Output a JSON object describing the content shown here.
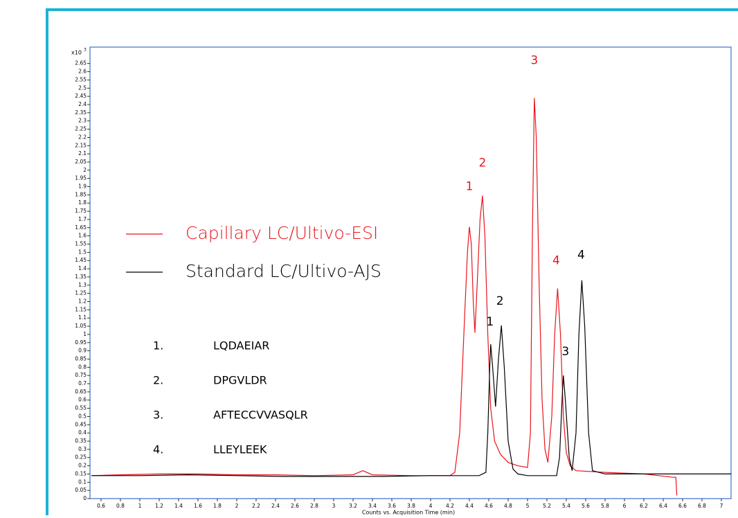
{
  "chart_data": {
    "type": "line",
    "x_label": "Counts vs. Acquisition Time (min)",
    "y_multiplier": "x10",
    "y_exponent": "3",
    "xlim": [
      0.486,
      7.1
    ],
    "ylim": [
      0,
      2.75
    ],
    "xticks": [
      0.6,
      0.8,
      1,
      1.2,
      1.4,
      1.6,
      1.8,
      2,
      2.2,
      2.4,
      2.6,
      2.8,
      3,
      3.2,
      3.4,
      3.6,
      3.8,
      4,
      4.2,
      4.4,
      4.6,
      4.8,
      5,
      5.2,
      5.4,
      5.6,
      5.8,
      6,
      6.2,
      6.4,
      6.6,
      6.8,
      7
    ],
    "yticks": [
      0,
      0.05,
      0.1,
      0.15,
      0.2,
      0.25,
      0.3,
      0.35,
      0.4,
      0.45,
      0.5,
      0.55,
      0.6,
      0.65,
      0.7,
      0.75,
      0.8,
      0.85,
      0.9,
      0.95,
      1,
      1.05,
      1.1,
      1.15,
      1.2,
      1.25,
      1.3,
      1.35,
      1.4,
      1.45,
      1.5,
      1.55,
      1.6,
      1.65,
      1.7,
      1.75,
      1.8,
      1.85,
      1.9,
      1.95,
      2,
      2.05,
      2.1,
      2.15,
      2.2,
      2.25,
      2.3,
      2.35,
      2.4,
      2.45,
      2.5,
      2.55,
      2.6,
      2.65
    ],
    "series": [
      {
        "name": "Capillary LC/Ultivo-ESI",
        "color": "#e8141c",
        "peak_labels": [
          "1",
          "2",
          "3",
          "4"
        ],
        "x": [
          0.5,
          0.8,
          1.2,
          1.6,
          2.0,
          2.4,
          2.8,
          3.2,
          3.3,
          3.4,
          3.8,
          4.2,
          4.25,
          4.3,
          4.35,
          4.38,
          4.4,
          4.42,
          4.44,
          4.457,
          4.48,
          4.51,
          4.535,
          4.56,
          4.59,
          4.62,
          4.66,
          4.72,
          4.8,
          4.9,
          5.0,
          5.03,
          5.05,
          5.07,
          5.09,
          5.12,
          5.15,
          5.18,
          5.21,
          5.25,
          5.28,
          5.31,
          5.34,
          5.37,
          5.4,
          5.44,
          5.5,
          5.8,
          6.2,
          6.5,
          6.53,
          6.54
        ],
        "values": [
          0.14,
          0.145,
          0.15,
          0.15,
          0.145,
          0.145,
          0.14,
          0.145,
          0.17,
          0.145,
          0.14,
          0.14,
          0.16,
          0.4,
          1.1,
          1.5,
          1.655,
          1.55,
          1.2,
          1.01,
          1.3,
          1.7,
          1.845,
          1.6,
          1.0,
          0.55,
          0.35,
          0.27,
          0.22,
          0.2,
          0.19,
          0.4,
          1.6,
          2.44,
          2.2,
          1.3,
          0.6,
          0.3,
          0.22,
          0.5,
          1.0,
          1.28,
          1.0,
          0.5,
          0.28,
          0.2,
          0.17,
          0.16,
          0.15,
          0.13,
          0.13,
          0.02
        ]
      },
      {
        "name": "Standard LC/Ultivo-AJS",
        "color": "#000000",
        "peak_labels": [
          "1",
          "2",
          "3",
          "4"
        ],
        "x": [
          0.5,
          1.0,
          1.5,
          2.0,
          2.5,
          3.0,
          3.5,
          4.0,
          4.5,
          4.57,
          4.59,
          4.61,
          4.62,
          4.64,
          4.67,
          4.7,
          4.73,
          4.76,
          4.8,
          4.85,
          4.9,
          5.0,
          5.3,
          5.33,
          5.36,
          5.37,
          5.39,
          5.43,
          5.46,
          5.5,
          5.53,
          5.56,
          5.59,
          5.63,
          5.67,
          5.8,
          6.5,
          7.1
        ],
        "values": [
          0.14,
          0.14,
          0.145,
          0.14,
          0.135,
          0.135,
          0.135,
          0.14,
          0.14,
          0.16,
          0.4,
          0.8,
          0.94,
          0.8,
          0.56,
          0.85,
          1.055,
          0.8,
          0.35,
          0.18,
          0.15,
          0.14,
          0.14,
          0.25,
          0.65,
          0.75,
          0.6,
          0.25,
          0.17,
          0.4,
          1.0,
          1.33,
          1.05,
          0.4,
          0.17,
          0.15,
          0.15,
          0.15
        ]
      }
    ]
  },
  "peptides": [
    {
      "number": "1.",
      "name": "LQDAEIAR"
    },
    {
      "number": "2.",
      "name": "DPGVLDR"
    },
    {
      "number": "3.",
      "name": "AFTECCVVASQLR"
    },
    {
      "number": "4.",
      "name": "LLEYLEEK"
    }
  ]
}
